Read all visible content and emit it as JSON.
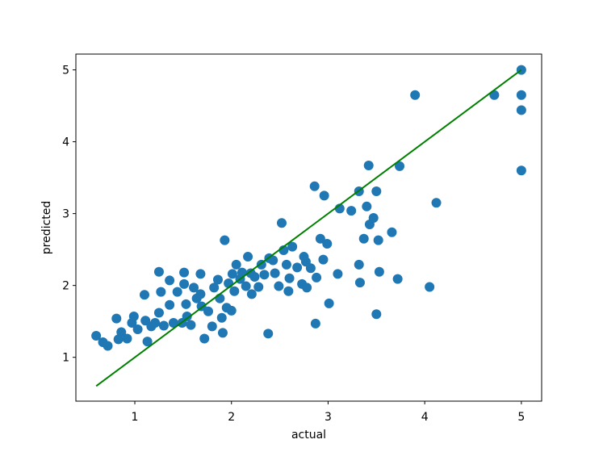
{
  "chart_data": {
    "type": "scatter",
    "xlabel": "actual",
    "ylabel": "predicted",
    "xlim": [
      0.39,
      5.21
    ],
    "ylim": [
      0.39,
      5.22
    ],
    "xticks": [
      1,
      2,
      3,
      4,
      5
    ],
    "yticks": [
      1,
      2,
      3,
      4,
      5
    ],
    "grid": false,
    "series": [
      {
        "type": "scatter",
        "color": "#1f77b4",
        "x": [
          0.6,
          0.67,
          0.72,
          0.81,
          0.83,
          0.86,
          0.92,
          0.97,
          0.99,
          1.03,
          1.1,
          1.13,
          1.11,
          1.17,
          1.21,
          1.25,
          1.27,
          1.25,
          1.3,
          1.36,
          1.36,
          1.4,
          1.44,
          1.49,
          1.51,
          1.51,
          1.53,
          1.54,
          1.58,
          1.61,
          1.64,
          1.68,
          1.68,
          1.69,
          1.72,
          1.76,
          1.8,
          1.82,
          1.86,
          1.88,
          1.9,
          1.91,
          1.93,
          1.95,
          1.97,
          2.0,
          2.01,
          2.03,
          2.05,
          2.09,
          2.11,
          2.15,
          2.17,
          2.2,
          2.21,
          2.24,
          2.28,
          2.31,
          2.34,
          2.38,
          2.39,
          2.43,
          2.45,
          2.49,
          2.52,
          2.54,
          2.57,
          2.59,
          2.6,
          2.63,
          2.68,
          2.73,
          2.75,
          2.77,
          2.78,
          2.82,
          2.86,
          2.87,
          2.88,
          2.92,
          2.95,
          2.96,
          2.99,
          3.01,
          3.1,
          3.12,
          3.24,
          3.32,
          3.32,
          3.33,
          3.37,
          3.4,
          3.42,
          3.43,
          3.47,
          3.5,
          3.5,
          3.52,
          3.53,
          3.66,
          3.72,
          3.74,
          3.9,
          4.05,
          4.12,
          4.72,
          5.0,
          5.0,
          5.0,
          5.0
        ],
        "values": [
          1.3,
          1.21,
          1.16,
          1.54,
          1.25,
          1.35,
          1.26,
          1.48,
          1.57,
          1.39,
          1.87,
          1.22,
          1.51,
          1.43,
          1.48,
          2.19,
          1.91,
          1.62,
          1.44,
          2.07,
          1.73,
          1.48,
          1.91,
          1.48,
          2.18,
          2.02,
          1.74,
          1.57,
          1.45,
          1.97,
          1.82,
          2.16,
          1.88,
          1.71,
          1.26,
          1.64,
          1.43,
          1.97,
          2.08,
          1.82,
          1.55,
          1.34,
          2.63,
          1.69,
          2.03,
          1.65,
          2.16,
          1.92,
          2.29,
          2.09,
          2.18,
          1.99,
          2.4,
          2.17,
          1.88,
          2.12,
          1.98,
          2.29,
          2.15,
          1.33,
          2.38,
          2.35,
          2.17,
          1.99,
          2.87,
          2.49,
          2.29,
          1.92,
          2.1,
          2.54,
          2.25,
          2.02,
          2.4,
          2.33,
          1.97,
          2.24,
          3.38,
          1.47,
          2.11,
          2.65,
          2.36,
          3.25,
          2.58,
          1.75,
          2.16,
          3.07,
          3.04,
          3.31,
          2.29,
          2.04,
          2.65,
          3.1,
          3.67,
          2.85,
          2.94,
          3.31,
          1.6,
          2.63,
          2.19,
          2.74,
          2.09,
          3.66,
          4.65,
          1.98,
          3.15,
          4.65,
          5.0,
          4.65,
          4.44,
          3.6
        ]
      },
      {
        "type": "line",
        "color": "#008000",
        "x": [
          0.6,
          5
        ],
        "values": [
          0.6,
          5
        ]
      }
    ]
  }
}
